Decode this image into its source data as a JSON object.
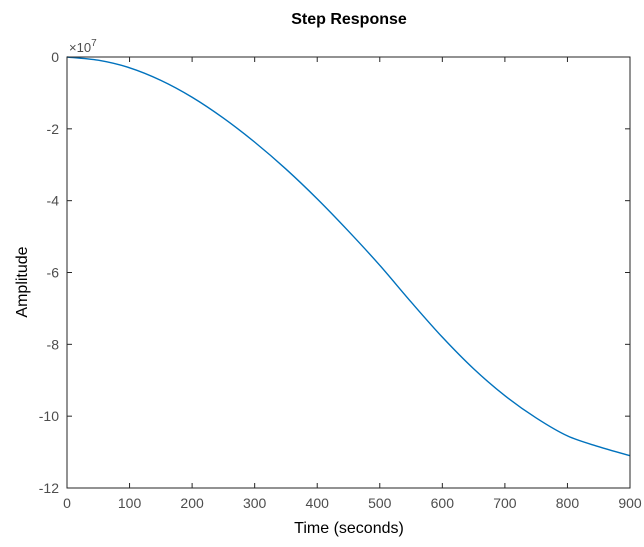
{
  "chart_data": {
    "type": "line",
    "title": "Step Response",
    "xlabel": "Time (seconds)",
    "ylabel": "Amplitude",
    "y_exponent_label": "×10",
    "y_exponent": "7",
    "xlim": [
      0,
      900
    ],
    "ylim": [
      -12,
      0
    ],
    "xticks": [
      0,
      100,
      200,
      300,
      400,
      500,
      600,
      700,
      800,
      900
    ],
    "yticks": [
      0,
      -2,
      -4,
      -6,
      -8,
      -10,
      -12
    ],
    "grid": false,
    "series": [
      {
        "color": "#0072BD",
        "x": [
          0,
          50,
          100,
          150,
          200,
          250,
          300,
          350,
          400,
          450,
          500,
          550,
          600,
          650,
          700,
          750,
          800,
          850,
          900
        ],
        "y": [
          0,
          -0.09,
          -0.3,
          -0.65,
          -1.12,
          -1.7,
          -2.37,
          -3.12,
          -3.95,
          -4.85,
          -5.8,
          -6.82,
          -7.8,
          -8.68,
          -9.43,
          -10.05,
          -10.55,
          -10.85,
          -11.1
        ]
      }
    ]
  },
  "colors": {
    "axis": "#262626",
    "tick_label": "#4d4d4d",
    "line": "#0072BD"
  }
}
